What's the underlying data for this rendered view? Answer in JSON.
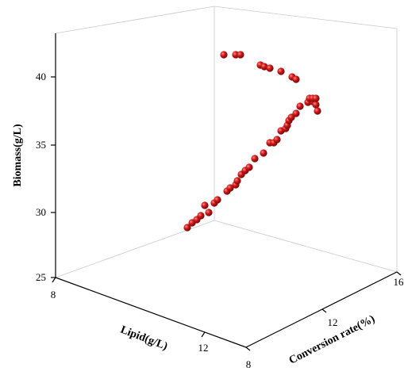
{
  "chart_data": {
    "type": "scatter3d",
    "axes": {
      "x": {
        "label": "Lipid(g/L)",
        "ticks": [
          "8",
          "12"
        ]
      },
      "y": {
        "label": "Conversion rate(%)",
        "ticks": [
          "8",
          "12",
          "16"
        ]
      },
      "z": {
        "label": "Biomass(g/L)",
        "ticks": [
          "25",
          "30",
          "35",
          "40"
        ]
      }
    },
    "marker_color": "#c41e1e",
    "series": [
      {
        "points_screen_estimate": "Points traced from the rendered projection of the 3D scatter",
        "points": [
          [
            236,
            287
          ],
          [
            242,
            281
          ],
          [
            248,
            277
          ],
          [
            253,
            272
          ],
          [
            258,
            259
          ],
          [
            263,
            268
          ],
          [
            270,
            256
          ],
          [
            274,
            252
          ],
          [
            286,
            241
          ],
          [
            290,
            237
          ],
          [
            297,
            233
          ],
          [
            299,
            228
          ],
          [
            304,
            220
          ],
          [
            309,
            215
          ],
          [
            314,
            211
          ],
          [
            321,
            200
          ],
          [
            332,
            193
          ],
          [
            340,
            180
          ],
          [
            345,
            180
          ],
          [
            349,
            176
          ],
          [
            354,
            165
          ],
          [
            360,
            162
          ],
          [
            362,
            158
          ],
          [
            364,
            152
          ],
          [
            367,
            148
          ],
          [
            373,
            143
          ],
          [
            378,
            134
          ],
          [
            388,
            129
          ],
          [
            394,
            128
          ],
          [
            398,
            132
          ],
          [
            400,
            140
          ],
          [
            390,
            124
          ],
          [
            394,
            124
          ],
          [
            398,
            124
          ],
          [
            282,
            69
          ],
          [
            297,
            69
          ],
          [
            303,
            69
          ],
          [
            328,
            82
          ],
          [
            333,
            84
          ],
          [
            340,
            86
          ],
          [
            354,
            90
          ],
          [
            368,
            97
          ],
          [
            373,
            100
          ]
        ]
      }
    ]
  }
}
